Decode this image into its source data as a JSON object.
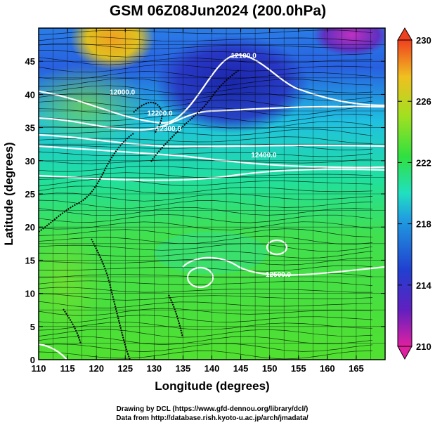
{
  "chart_data": {
    "type": "heatmap",
    "title": "GSM 06Z08Jun2024 (200.0hPa)",
    "xlabel": "Longitude (degrees)",
    "ylabel": "Latitude  (degrees)",
    "xlim": [
      110,
      170
    ],
    "ylim": [
      0,
      50
    ],
    "x_ticks": [
      "110",
      "115",
      "120",
      "125",
      "130",
      "135",
      "140",
      "145",
      "150",
      "155",
      "160",
      "165"
    ],
    "y_ticks": [
      "0",
      "5",
      "10",
      "15",
      "20",
      "25",
      "30",
      "35",
      "40",
      "45"
    ],
    "colorbar": {
      "min": 210,
      "max": 230,
      "tick_values": [
        "210",
        "214",
        "218",
        "222",
        "226",
        "230"
      ],
      "colors": [
        "#e020a0",
        "#6020c0",
        "#2040d0",
        "#20a0e0",
        "#20e0c0",
        "#30e040",
        "#a0e020",
        "#f0c020",
        "#f04020"
      ]
    },
    "contour_labels": [
      {
        "text": "12100.0",
        "lon": 145.5,
        "lat": 45.5
      },
      {
        "text": "12000.0",
        "lon": 124.5,
        "lat": 40.0
      },
      {
        "text": "12200.0",
        "lon": 131.0,
        "lat": 36.8
      },
      {
        "text": "12300.0",
        "lon": 132.5,
        "lat": 34.5
      },
      {
        "text": "12400.0",
        "lon": 149.0,
        "lat": 30.5
      },
      {
        "text": "12500.0",
        "lon": 151.5,
        "lat": 12.5
      }
    ],
    "grid": true,
    "legend": "colorbar-right"
  },
  "credits": {
    "line1": "Drawing by DCL (https://www.gfd-dennou.org/library/dcl/)",
    "line2": "Data from http://database.rish.kyoto-u.ac.jp/arch/jmadata/"
  }
}
